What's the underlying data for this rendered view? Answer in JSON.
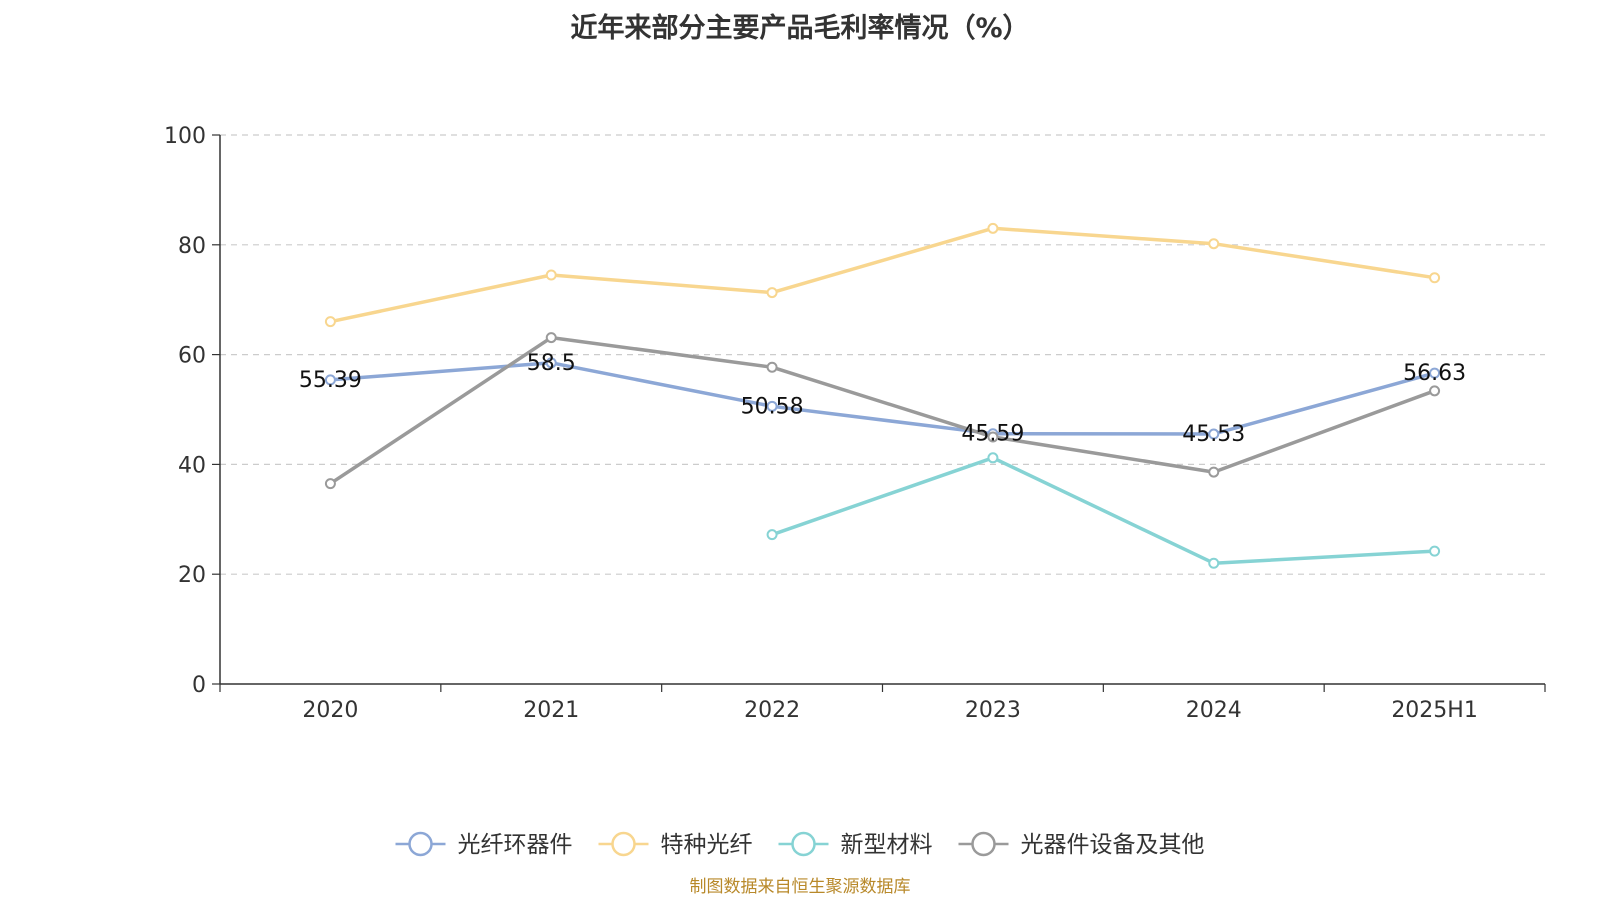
{
  "chart_data": {
    "type": "line",
    "title": "近年来部分主要产品毛利率情况（%）",
    "categories": [
      "2020",
      "2021",
      "2022",
      "2023",
      "2024",
      "2025H1"
    ],
    "ylim": [
      0,
      100
    ],
    "yticks": [
      0,
      20,
      40,
      60,
      80,
      100
    ],
    "grid": true,
    "legend_position": "bottom",
    "series": [
      {
        "name": "光纤环器件",
        "color": "#8ca7d6",
        "values": [
          55.39,
          58.5,
          50.58,
          45.59,
          45.53,
          56.63
        ],
        "show_labels": true
      },
      {
        "name": "特种光纤",
        "color": "#f8d68f",
        "values": [
          66.0,
          74.5,
          71.3,
          83.0,
          80.2,
          74.0
        ],
        "show_labels": false
      },
      {
        "name": "新型材料",
        "color": "#86d3d4",
        "values": [
          null,
          null,
          27.2,
          41.2,
          22.0,
          24.2
        ],
        "show_labels": false
      },
      {
        "name": "光器件设备及其他",
        "color": "#9a9a9a",
        "values": [
          36.5,
          63.1,
          57.7,
          45.0,
          38.6,
          53.4
        ],
        "show_labels": false
      }
    ]
  },
  "footer": {
    "source": "制图数据来自恒生聚源数据库"
  }
}
